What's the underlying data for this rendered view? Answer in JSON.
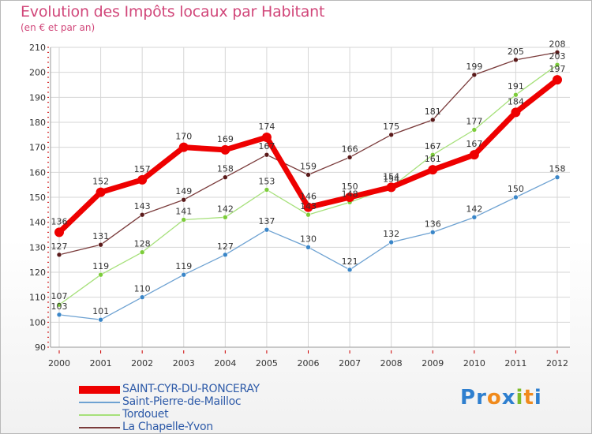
{
  "header": {
    "title": "Evolution des Impôts locaux par Habitant",
    "subtitle": "(en € et par an)"
  },
  "colors": {
    "title": "#d1477a",
    "legend_text": "#2d5aa8",
    "grid": "#d6d6d6",
    "axis_red": "#cc0000"
  },
  "logo": {
    "letters": [
      {
        "char": "P",
        "color": "#2e7fcf"
      },
      {
        "char": "r",
        "color": "#2e7fcf"
      },
      {
        "char": "o",
        "color": "#f08a1c"
      },
      {
        "char": "x",
        "color": "#2e7fcf"
      },
      {
        "char": "i",
        "color": "#7dbb2a"
      },
      {
        "char": "t",
        "color": "#f08a1c"
      },
      {
        "char": "i",
        "color": "#2e7fcf"
      }
    ]
  },
  "chart_data": {
    "type": "line",
    "title": "Evolution des Impôts locaux par Habitant",
    "subtitle": "(en € et par an)",
    "xlabel": "",
    "ylabel": "",
    "ylim": [
      90,
      210
    ],
    "yticks": [
      90,
      100,
      110,
      120,
      130,
      140,
      150,
      160,
      170,
      180,
      190,
      200,
      210
    ],
    "grid": true,
    "legend_position": "bottom-left",
    "categories": [
      "2000",
      "2001",
      "2002",
      "2003",
      "2004",
      "2005",
      "2006",
      "2007",
      "2008",
      "2009",
      "2010",
      "2011",
      "2012"
    ],
    "series": [
      {
        "name": "SAINT-CYR-DU-RONCERAY",
        "color": "#ee0000",
        "marker": "#ee0000",
        "width": 7,
        "radius": 6,
        "values": [
          136,
          152,
          157,
          170,
          169,
          174,
          146,
          150,
          154,
          161,
          167,
          184,
          197
        ]
      },
      {
        "name": "Saint-Pierre-de-Mailloc",
        "color": "#6ea2d2",
        "marker": "#3a86c8",
        "width": 1.3,
        "radius": 3,
        "values": [
          103,
          101,
          110,
          119,
          127,
          137,
          130,
          121,
          132,
          136,
          142,
          150,
          158
        ]
      },
      {
        "name": "Tordouet",
        "color": "#a6e07a",
        "marker": "#7ccc3a",
        "width": 1.3,
        "radius": 3,
        "values": [
          107,
          119,
          128,
          141,
          142,
          153,
          143,
          148,
          154,
          167,
          177,
          191,
          203
        ]
      },
      {
        "name": "La Chapelle-Yvon",
        "color": "#7a3b3b",
        "marker": "#5a1a1a",
        "width": 1.3,
        "radius": 3,
        "values": [
          127,
          131,
          143,
          149,
          158,
          167,
          159,
          166,
          175,
          181,
          199,
          205,
          208
        ]
      }
    ]
  }
}
